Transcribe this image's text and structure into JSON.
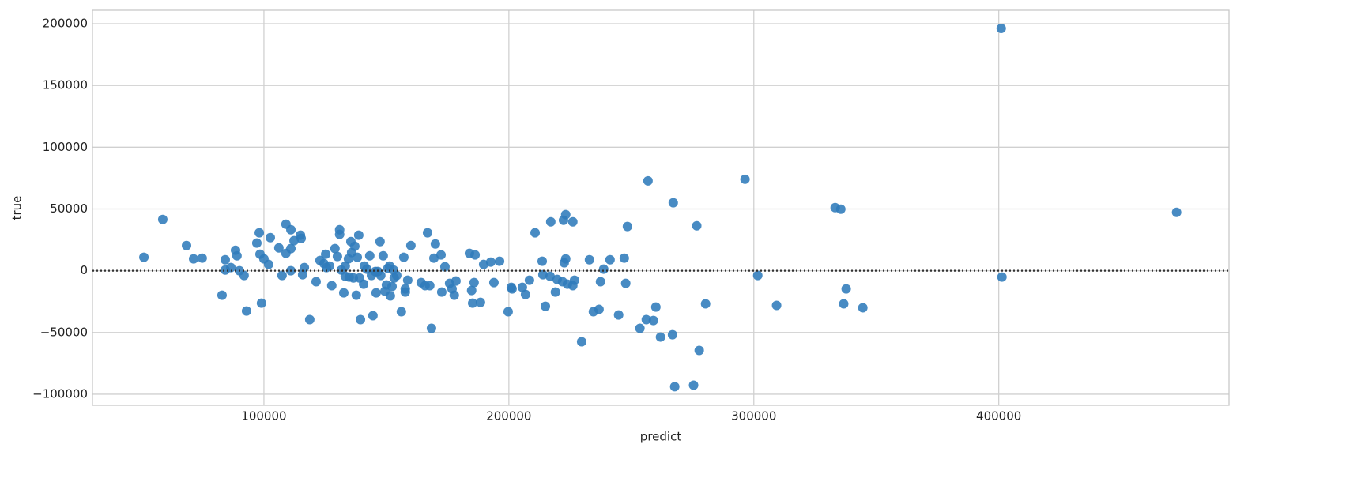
{
  "chart_data": {
    "type": "scatter",
    "xlabel": "predict",
    "ylabel": "true",
    "color": "#2f7bbb",
    "grid": true,
    "hline": 0,
    "xlim": [
      30000,
      494000
    ],
    "ylim": [
      -109000,
      210900
    ],
    "xticks": [
      100000,
      200000,
      300000,
      400000
    ],
    "yticks": [
      {
        "value": -100000,
        "label": "−100000"
      },
      {
        "value": -50000,
        "label": "−50000"
      },
      0,
      50000,
      100000,
      150000,
      200000
    ],
    "x": [
      51000,
      58700,
      68400,
      71300,
      74800,
      82900,
      84200,
      84200,
      86500,
      88400,
      89000,
      90000,
      91900,
      92900,
      98100,
      97100,
      98400,
      100000,
      101900,
      102600,
      99000,
      106100,
      107400,
      109000,
      109000,
      111000,
      111000,
      111000,
      112300,
      114900,
      115200,
      115800,
      116500,
      118700,
      121300,
      122900,
      124500,
      125200,
      125500,
      126800,
      127700,
      129000,
      130000,
      130900,
      130900,
      131600,
      132600,
      133200,
      133200,
      134500,
      134800,
      135500,
      135800,
      136500,
      137100,
      137700,
      138100,
      138700,
      139000,
      139400,
      140700,
      141000,
      142000,
      143200,
      143900,
      144500,
      145500,
      145800,
      146500,
      147400,
      147700,
      148700,
      149400,
      150000,
      150600,
      151300,
      151600,
      152300,
      152900,
      153200,
      154200,
      156100,
      157100,
      157700,
      157700,
      158700,
      160000,
      164200,
      165800,
      166800,
      167700,
      168400,
      169400,
      170000,
      172300,
      172600,
      173900,
      175800,
      176800,
      177700,
      178400,
      183900,
      184800,
      185200,
      185800,
      186200,
      188400,
      189700,
      192600,
      193900,
      196200,
      199700,
      201000,
      201300,
      205500,
      206800,
      208400,
      210700,
      213600,
      213900,
      214900,
      216800,
      217100,
      219000,
      219700,
      221900,
      222300,
      222600,
      223200,
      223200,
      223900,
      226100,
      226100,
      226800,
      229700,
      232900,
      234500,
      236800,
      237400,
      238700,
      241300,
      244800,
      247100,
      247700,
      248400,
      253500,
      256100,
      256800,
      259000,
      260000,
      261900,
      266800,
      267100,
      267700,
      275400,
      276700,
      277700,
      280300,
      296400,
      301600,
      309300,
      333200,
      335500,
      336700,
      337700,
      344500,
      401000,
      401300,
      472600
    ],
    "values": [
      10900,
      41500,
      20400,
      9600,
      10200,
      -19800,
      8900,
      600,
      2600,
      16600,
      12100,
      0,
      -3800,
      -32600,
      30700,
      22400,
      13400,
      9600,
      5100,
      26800,
      -26200,
      18500,
      -3800,
      37700,
      14100,
      33200,
      17900,
      0,
      24300,
      28800,
      26200,
      -3200,
      2600,
      -39600,
      -8900,
      8300,
      5800,
      13400,
      2600,
      3800,
      -12100,
      17900,
      11500,
      29400,
      33200,
      600,
      -17900,
      3800,
      -4500,
      9600,
      -5100,
      23600,
      14700,
      -5800,
      19800,
      -19800,
      10900,
      28800,
      -5800,
      -39600,
      -10900,
      3800,
      1300,
      12100,
      -3800,
      -36400,
      -600,
      -17900,
      -600,
      23600,
      -3800,
      12100,
      -16600,
      -11500,
      1900,
      3800,
      -20400,
      -12800,
      600,
      -5800,
      -3800,
      -33200,
      10900,
      -14700,
      -17300,
      -7700,
      20400,
      -9600,
      -12100,
      30700,
      -12100,
      -46600,
      10200,
      21700,
      12800,
      -17300,
      3200,
      -10200,
      -14700,
      -19800,
      -8300,
      14100,
      -16000,
      -26200,
      -9600,
      12800,
      -25600,
      5100,
      7000,
      -9600,
      7700,
      -33200,
      -13400,
      -14700,
      -13400,
      -19200,
      -7700,
      30700,
      7700,
      -3200,
      -28800,
      -4500,
      39600,
      -17300,
      -7000,
      -8900,
      40900,
      6400,
      45400,
      9600,
      -10900,
      39600,
      -12100,
      -7700,
      -57500,
      8900,
      -33200,
      -31300,
      -8900,
      1300,
      8900,
      -35800,
      10200,
      -10200,
      35800,
      -46600,
      -39600,
      72800,
      -40300,
      -29400,
      -53700,
      -51800,
      55000,
      -93900,
      -92700,
      36400,
      -64500,
      -26800,
      74100,
      -3800,
      -28100,
      51100,
      49800,
      -26800,
      -14700,
      -30000,
      196200,
      -5100,
      47300
    ]
  }
}
